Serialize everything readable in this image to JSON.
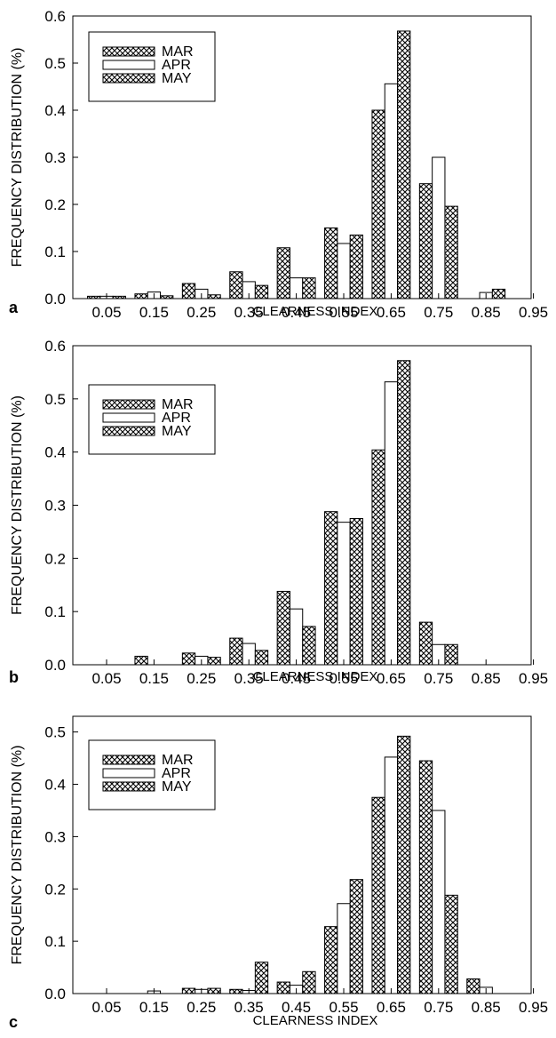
{
  "legend": [
    "MAR",
    "APR",
    "MAY"
  ],
  "colors": {
    "axis": "#000000",
    "fill_plain": "#ffffff"
  },
  "chart_data": [
    {
      "panel": "a",
      "type": "bar",
      "title": "",
      "xlabel": "CLEARNESS INDEX",
      "ylabel": "FREQUENCY DISTRIBUTION (%)",
      "categories": [
        "0.05",
        "0.15",
        "0.25",
        "0.35",
        "0.45",
        "0.55",
        "0.65",
        "0.75",
        "0.85",
        "0.95"
      ],
      "yticks": [
        "0.0",
        "0.1",
        "0.2",
        "0.3",
        "0.4",
        "0.5",
        "0.6"
      ],
      "ylim": [
        0,
        0.6
      ],
      "legend_position": "top-left",
      "series": [
        {
          "name": "MAR",
          "pattern": "crosshatch",
          "values": [
            0.005,
            0.01,
            0.032,
            0.057,
            0.108,
            0.15,
            0.4,
            0.244,
            0.0,
            0.0
          ]
        },
        {
          "name": "APR",
          "pattern": "plain",
          "values": [
            0.005,
            0.014,
            0.02,
            0.036,
            0.044,
            0.117,
            0.456,
            0.3,
            0.013,
            0.0
          ]
        },
        {
          "name": "MAY",
          "pattern": "crosshatch",
          "values": [
            0.005,
            0.006,
            0.008,
            0.028,
            0.044,
            0.135,
            0.568,
            0.196,
            0.02,
            0.0
          ]
        }
      ]
    },
    {
      "panel": "b",
      "type": "bar",
      "title": "",
      "xlabel": "CLEARNESS INDEX",
      "ylabel": "FREQUENCY DISTRIBUTION (%)",
      "categories": [
        "0.05",
        "0.15",
        "0.25",
        "0.35",
        "0.45",
        "0.55",
        "0.65",
        "0.75",
        "0.85",
        "0.95"
      ],
      "yticks": [
        "0.0",
        "0.1",
        "0.2",
        "0.3",
        "0.4",
        "0.5",
        "0.6"
      ],
      "ylim": [
        0,
        0.6
      ],
      "legend_position": "top-left",
      "series": [
        {
          "name": "MAR",
          "pattern": "crosshatch",
          "values": [
            0.0,
            0.016,
            0.022,
            0.05,
            0.138,
            0.288,
            0.404,
            0.08,
            0.0,
            0.0
          ]
        },
        {
          "name": "APR",
          "pattern": "plain",
          "values": [
            0.0,
            0.0,
            0.016,
            0.04,
            0.105,
            0.268,
            0.532,
            0.038,
            0.0,
            0.0
          ]
        },
        {
          "name": "MAY",
          "pattern": "crosshatch",
          "values": [
            0.0,
            0.0,
            0.014,
            0.027,
            0.072,
            0.275,
            0.572,
            0.038,
            0.0,
            0.0
          ]
        }
      ]
    },
    {
      "panel": "c",
      "type": "bar",
      "title": "",
      "xlabel": "CLEARNESS INDEX",
      "ylabel": "FREQUENCY DISTRIBUTION (%)",
      "categories": [
        "0.05",
        "0.15",
        "0.25",
        "0.35",
        "0.45",
        "0.55",
        "0.65",
        "0.75",
        "0.85",
        "0.95"
      ],
      "yticks": [
        "0.0",
        "0.1",
        "0.2",
        "0.3",
        "0.4",
        "0.5"
      ],
      "ylim": [
        0,
        0.53
      ],
      "legend_position": "top-left",
      "series": [
        {
          "name": "MAR",
          "pattern": "crosshatch",
          "values": [
            0.0,
            0.0,
            0.01,
            0.008,
            0.022,
            0.128,
            0.375,
            0.445,
            0.028,
            0.0
          ]
        },
        {
          "name": "APR",
          "pattern": "plain",
          "values": [
            0.0,
            0.005,
            0.008,
            0.006,
            0.016,
            0.172,
            0.452,
            0.35,
            0.012,
            0.0
          ]
        },
        {
          "name": "MAY",
          "pattern": "crosshatch",
          "values": [
            0.0,
            0.0,
            0.01,
            0.06,
            0.042,
            0.218,
            0.492,
            0.188,
            0.0,
            0.0
          ]
        }
      ]
    }
  ]
}
